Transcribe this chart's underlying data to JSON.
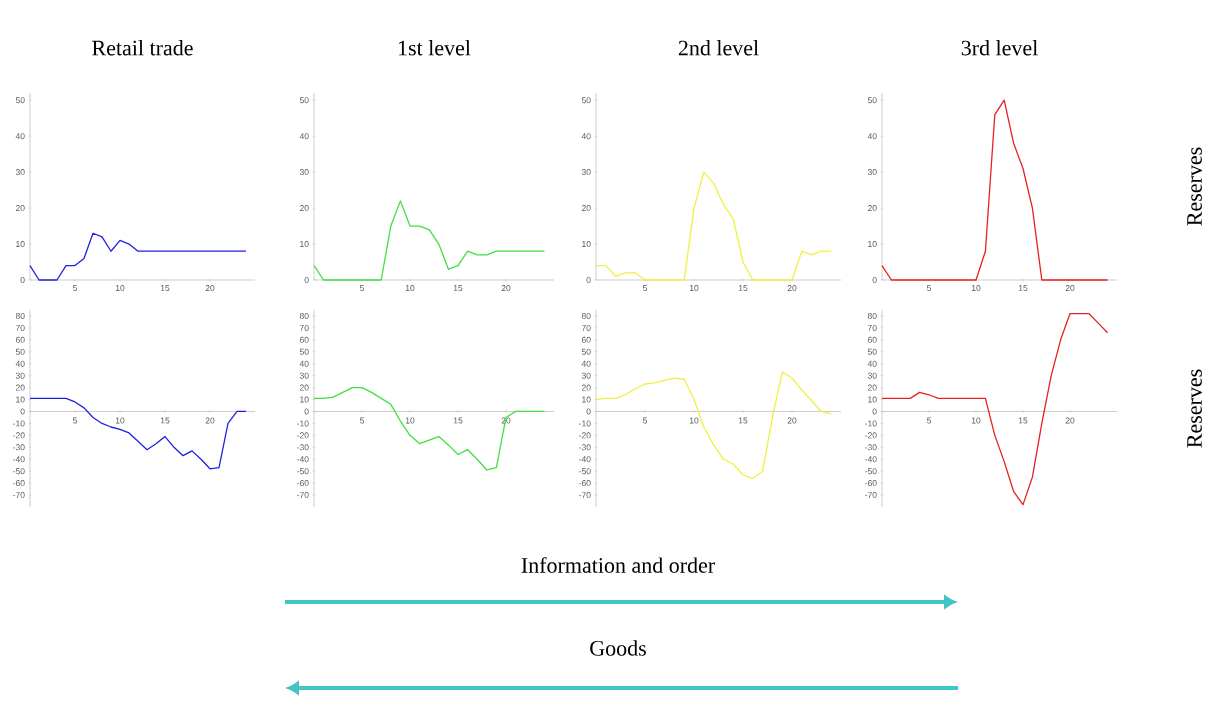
{
  "chart_data": [
    {
      "type": "line",
      "title": "Retail trade",
      "color": "#2020e0",
      "x": [
        0,
        1,
        2,
        3,
        4,
        5,
        6,
        7,
        8,
        9,
        10,
        11,
        12,
        13,
        14,
        15,
        16,
        17,
        18,
        19,
        20,
        21,
        22,
        23,
        24
      ],
      "values": [
        4,
        0,
        0,
        0,
        4,
        4,
        6,
        13,
        12,
        8,
        11,
        10,
        8,
        8,
        8,
        8,
        8,
        8,
        8,
        8,
        8,
        8,
        8,
        8,
        8
      ],
      "xlim": [
        0,
        25
      ],
      "ylim": [
        0,
        52
      ],
      "xticks": [
        5,
        10,
        15,
        20
      ],
      "yticks": [
        0,
        10,
        20,
        30,
        40,
        50
      ]
    },
    {
      "type": "line",
      "title": "1st level",
      "color": "#40e040",
      "x": [
        0,
        1,
        2,
        3,
        4,
        5,
        6,
        7,
        8,
        9,
        10,
        11,
        12,
        13,
        14,
        15,
        16,
        17,
        18,
        19,
        20,
        21,
        22,
        23,
        24
      ],
      "values": [
        4,
        0,
        0,
        0,
        0,
        0,
        0,
        0,
        15,
        22,
        15,
        15,
        14,
        10,
        3,
        4,
        8,
        7,
        7,
        8,
        8,
        8,
        8,
        8,
        8
      ],
      "xlim": [
        0,
        25
      ],
      "ylim": [
        0,
        52
      ],
      "xticks": [
        5,
        10,
        15,
        20
      ],
      "yticks": [
        0,
        10,
        20,
        30,
        40,
        50
      ]
    },
    {
      "type": "line",
      "title": "2nd level",
      "color": "#f0f040",
      "x": [
        0,
        1,
        2,
        3,
        4,
        5,
        6,
        7,
        8,
        9,
        10,
        11,
        12,
        13,
        14,
        15,
        16,
        17,
        18,
        19,
        20,
        21,
        22,
        23,
        24
      ],
      "values": [
        4,
        4,
        1,
        2,
        2,
        0,
        0,
        0,
        0,
        0,
        20,
        30,
        27,
        21,
        17,
        5,
        0,
        0,
        0,
        0,
        0,
        8,
        7,
        8,
        8
      ],
      "xlim": [
        0,
        25
      ],
      "ylim": [
        0,
        52
      ],
      "xticks": [
        5,
        10,
        15,
        20
      ],
      "yticks": [
        0,
        10,
        20,
        30,
        40,
        50
      ]
    },
    {
      "type": "line",
      "title": "3rd level",
      "color": "#e82020",
      "x": [
        0,
        1,
        2,
        3,
        4,
        5,
        6,
        7,
        8,
        9,
        10,
        11,
        12,
        13,
        14,
        15,
        16,
        17,
        18,
        19,
        20,
        21,
        22,
        23,
        24
      ],
      "values": [
        4,
        0,
        0,
        0,
        0,
        0,
        0,
        0,
        0,
        0,
        0,
        8,
        46,
        50,
        38,
        31,
        20,
        0,
        0,
        0,
        0,
        0,
        0,
        0,
        0
      ],
      "xlim": [
        0,
        25
      ],
      "ylim": [
        0,
        52
      ],
      "xticks": [
        5,
        10,
        15,
        20
      ],
      "yticks": [
        0,
        10,
        20,
        30,
        40,
        50
      ],
      "annotations": [
        "Reserves"
      ]
    },
    {
      "type": "line",
      "color": "#2020e0",
      "x": [
        0,
        1,
        2,
        3,
        4,
        5,
        6,
        7,
        8,
        9,
        10,
        11,
        12,
        13,
        14,
        15,
        16,
        17,
        18,
        19,
        20,
        21,
        22,
        23,
        24
      ],
      "values": [
        11,
        11,
        11,
        11,
        11,
        8,
        3,
        -5,
        -10,
        -13,
        -15,
        -18,
        -25,
        -32,
        -27,
        -21,
        -30,
        -37,
        -33,
        -40,
        -48,
        -47,
        -10,
        0,
        0
      ],
      "xlim": [
        0,
        25
      ],
      "ylim": [
        -80,
        85
      ],
      "xticks": [
        5,
        10,
        15,
        20
      ],
      "yticks": [
        -70,
        -60,
        -50,
        -40,
        -30,
        -20,
        -10,
        0,
        10,
        20,
        30,
        40,
        50,
        60,
        70,
        80
      ]
    },
    {
      "type": "line",
      "color": "#40e040",
      "x": [
        0,
        1,
        2,
        3,
        4,
        5,
        6,
        7,
        8,
        9,
        10,
        11,
        12,
        13,
        14,
        15,
        16,
        17,
        18,
        19,
        20,
        21,
        22,
        23,
        24
      ],
      "values": [
        11,
        11,
        12,
        16,
        20,
        20,
        16,
        11,
        6,
        -8,
        -20,
        -27,
        -24,
        -21,
        -28,
        -36,
        -32,
        -40,
        -49,
        -47,
        -5,
        0,
        0,
        0,
        0
      ],
      "xlim": [
        0,
        25
      ],
      "ylim": [
        -80,
        85
      ],
      "xticks": [
        5,
        10,
        15,
        20
      ],
      "yticks": [
        -70,
        -60,
        -50,
        -40,
        -30,
        -20,
        -10,
        0,
        10,
        20,
        30,
        40,
        50,
        60,
        70,
        80
      ]
    },
    {
      "type": "line",
      "color": "#f0f040",
      "x": [
        0,
        1,
        2,
        3,
        4,
        5,
        6,
        7,
        8,
        9,
        10,
        11,
        12,
        13,
        14,
        15,
        16,
        17,
        18,
        19,
        20,
        21,
        22,
        23,
        24
      ],
      "values": [
        10,
        11,
        11,
        14,
        19,
        23,
        24,
        26,
        28,
        27,
        10,
        -13,
        -28,
        -40,
        -44,
        -53,
        -56,
        -50,
        -5,
        33,
        28,
        18,
        9,
        0,
        -2
      ],
      "xlim": [
        0,
        25
      ],
      "ylim": [
        -80,
        85
      ],
      "xticks": [
        5,
        10,
        15,
        20
      ],
      "yticks": [
        -70,
        -60,
        -50,
        -40,
        -30,
        -20,
        -10,
        0,
        10,
        20,
        30,
        40,
        50,
        60,
        70,
        80
      ]
    },
    {
      "type": "line",
      "color": "#e82020",
      "x": [
        0,
        1,
        2,
        3,
        4,
        5,
        6,
        7,
        8,
        9,
        10,
        11,
        12,
        13,
        14,
        15,
        16,
        17,
        18,
        19,
        20,
        21,
        22,
        23,
        24
      ],
      "values": [
        11,
        11,
        11,
        11,
        16,
        14,
        11,
        11,
        11,
        11,
        11,
        11,
        -20,
        -42,
        -67,
        -78,
        -55,
        -10,
        30,
        60,
        82,
        82,
        82,
        74,
        66
      ],
      "xlim": [
        0,
        25
      ],
      "ylim": [
        -80,
        85
      ],
      "xticks": [
        5,
        10,
        15,
        20
      ],
      "yticks": [
        -70,
        -60,
        -50,
        -40,
        -30,
        -20,
        -10,
        0,
        10,
        20,
        30,
        40,
        50,
        60,
        70,
        80
      ],
      "annotations": [
        "Reserves"
      ]
    },
    {
      "type": "other",
      "annotations": [
        "Information and order",
        "Goods"
      ]
    }
  ]
}
